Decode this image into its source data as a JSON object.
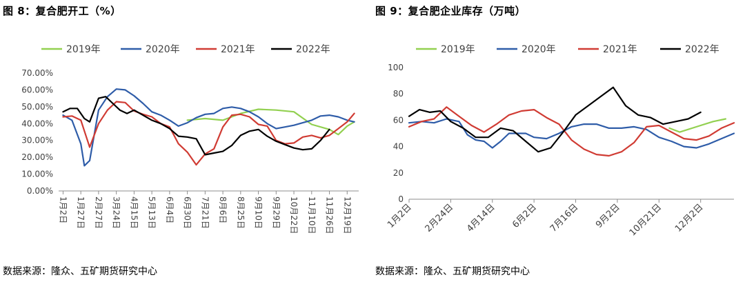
{
  "chart_data": [
    {
      "type": "line",
      "title": "图 8：复合肥开工（%）",
      "source": "数据来源：隆众、五矿期货研究中心",
      "ylim": [
        0,
        70
      ],
      "yticks": [
        "0.00%",
        "10.00%",
        "20.00%",
        "30.00%",
        "40.00%",
        "50.00%",
        "60.00%",
        "70.00%"
      ],
      "x_tick_labels": [
        "1月2日",
        "1月27日",
        "2月27日",
        "3月24日",
        "4月15日",
        "5月13日",
        "6月4日",
        "6月30日",
        "7月21日",
        "8月6日",
        "8月25日",
        "9月10日",
        "9月29日",
        "10月22日",
        "11月10日",
        "11月26日",
        "12月19日"
      ],
      "grid": false,
      "legend": "top",
      "series": [
        {
          "name": "2019年",
          "color": "#92d050",
          "x": [
            7.0,
            8.0,
            9.0,
            10.0,
            11.0,
            12.0,
            13.0,
            14.0,
            15.0,
            15.5,
            16.0,
            16.4
          ],
          "values": [
            42.0,
            43.0,
            42.0,
            46.0,
            48.5,
            48.0,
            47.0,
            39.5,
            36.5,
            33.5,
            38.5,
            41.0
          ]
        },
        {
          "name": "2020年",
          "color": "#2e5ca8",
          "x": [
            0.0,
            0.5,
            1.0,
            1.2,
            1.5,
            2.0,
            2.5,
            3.0,
            3.5,
            4.0,
            4.5,
            5.0,
            5.5,
            6.0,
            6.5,
            7.0,
            7.5,
            8.0,
            8.5,
            9.0,
            9.5,
            10.0,
            10.5,
            11.0,
            11.5,
            12.0,
            12.5,
            13.0,
            13.5,
            14.0,
            14.5,
            15.0,
            15.5,
            16.0,
            16.4
          ],
          "values": [
            45.0,
            42.0,
            28.0,
            15.0,
            18.0,
            48.0,
            56.0,
            60.5,
            60.0,
            56.5,
            52.0,
            47.0,
            45.0,
            42.0,
            38.5,
            40.5,
            43.5,
            45.5,
            46.0,
            49.0,
            49.8,
            49.0,
            47.0,
            44.0,
            40.0,
            37.0,
            38.0,
            39.0,
            40.5,
            42.0,
            44.5,
            45.0,
            44.0,
            42.0,
            41.0
          ]
        },
        {
          "name": "2021年",
          "color": "#d03b33",
          "x": [
            0.0,
            0.5,
            1.0,
            1.5,
            2.0,
            2.5,
            3.0,
            3.5,
            4.0,
            4.5,
            5.0,
            5.5,
            6.0,
            6.5,
            7.0,
            7.5,
            8.0,
            8.5,
            9.0,
            9.5,
            10.0,
            10.5,
            11.0,
            11.5,
            12.0,
            12.5,
            13.0,
            13.5,
            14.0,
            14.5,
            15.0,
            15.5,
            16.0,
            16.4
          ],
          "values": [
            44.0,
            44.5,
            42.0,
            26.0,
            40.0,
            48.0,
            53.0,
            52.5,
            47.5,
            45.5,
            44.0,
            40.0,
            38.0,
            28.0,
            23.0,
            15.5,
            22.0,
            25.0,
            38.0,
            45.0,
            45.5,
            44.0,
            39.5,
            38.5,
            30.0,
            28.0,
            28.5,
            32.0,
            33.0,
            31.5,
            33.0,
            37.0,
            41.0,
            46.0
          ]
        },
        {
          "name": "2022年",
          "color": "#000000",
          "x": [
            0.0,
            0.4,
            0.8,
            1.2,
            1.5,
            2.0,
            2.4,
            2.8,
            3.2,
            3.6,
            4.0,
            4.5,
            5.0,
            5.5,
            6.0,
            6.5,
            7.0,
            7.5,
            8.0,
            8.5,
            9.0,
            9.5,
            10.0,
            10.5,
            11.0,
            11.5,
            12.0,
            12.5,
            13.0,
            13.5,
            14.0,
            14.5,
            15.0
          ],
          "values": [
            47.0,
            49.0,
            49.0,
            43.0,
            41.0,
            55.0,
            56.0,
            52.0,
            48.0,
            46.0,
            48.0,
            45.0,
            42.0,
            40.0,
            37.0,
            32.5,
            32.0,
            31.0,
            21.5,
            22.5,
            23.5,
            27.0,
            33.0,
            35.5,
            36.5,
            32.5,
            29.5,
            27.5,
            25.5,
            24.5,
            25.0,
            30.0,
            36.5
          ]
        }
      ]
    },
    {
      "type": "line",
      "title": "图 9：复合肥企业库存（万吨）",
      "source": "数据来源：隆众、五矿期货研究中心",
      "ylim": [
        0,
        100
      ],
      "yticks": [
        "0",
        "20",
        "40",
        "60",
        "80",
        "100"
      ],
      "x_tick_labels": [
        "1月2日",
        "2月24日",
        "4月14日",
        "6月2日",
        "7月16日",
        "9月2日",
        "10月21日",
        "12月2日"
      ],
      "grid": false,
      "legend": "top",
      "series": [
        {
          "name": "2019年",
          "color": "#92d050",
          "x": [
            6.25,
            6.5,
            7.0,
            7.3,
            7.6
          ],
          "values": [
            54.0,
            51.0,
            56.0,
            59.0,
            61.0
          ]
        },
        {
          "name": "2020年",
          "color": "#2e5ca8",
          "x": [
            0.0,
            0.3,
            0.6,
            0.9,
            1.2,
            1.4,
            1.6,
            1.8,
            2.0,
            2.2,
            2.4,
            2.6,
            2.8,
            3.0,
            3.3,
            3.6,
            3.9,
            4.2,
            4.5,
            4.8,
            5.1,
            5.4,
            5.7,
            6.0,
            6.3,
            6.6,
            6.9,
            7.2,
            7.5,
            7.8
          ],
          "values": [
            58.0,
            59.0,
            58.0,
            61.0,
            59.0,
            49.0,
            45.0,
            44.0,
            39.0,
            44.0,
            50.0,
            50.0,
            50.0,
            47.0,
            46.0,
            50.0,
            55.0,
            57.0,
            57.0,
            54.0,
            54.0,
            55.0,
            53.0,
            47.0,
            44.0,
            40.0,
            39.0,
            42.0,
            46.0,
            50.0
          ]
        },
        {
          "name": "2021年",
          "color": "#d03b33",
          "x": [
            0.0,
            0.3,
            0.6,
            0.9,
            1.2,
            1.5,
            1.8,
            2.1,
            2.4,
            2.7,
            3.0,
            3.3,
            3.6,
            3.9,
            4.2,
            4.5,
            4.8,
            5.1,
            5.4,
            5.7,
            6.0,
            6.3,
            6.6,
            6.9,
            7.2,
            7.5,
            7.8
          ],
          "values": [
            55.0,
            59.0,
            61.0,
            70.0,
            63.0,
            56.0,
            51.0,
            57.0,
            64.0,
            67.0,
            68.0,
            62.0,
            57.0,
            45.0,
            38.0,
            34.0,
            33.0,
            36.0,
            43.0,
            55.0,
            56.0,
            51.0,
            46.0,
            45.0,
            48.0,
            54.0,
            58.0
          ]
        },
        {
          "name": "2022年",
          "color": "#000000",
          "x": [
            0.0,
            0.25,
            0.5,
            0.75,
            1.0,
            1.3,
            1.6,
            1.9,
            2.2,
            2.5,
            2.8,
            3.1,
            3.4,
            3.7,
            4.0,
            4.3,
            4.6,
            4.9,
            5.2,
            5.5,
            5.8,
            6.1,
            6.4,
            6.7,
            7.0
          ],
          "values": [
            63.0,
            68.0,
            66.0,
            67.0,
            59.0,
            54.0,
            47.0,
            47.0,
            54.0,
            52.0,
            44.0,
            36.0,
            39.0,
            51.0,
            64.0,
            71.0,
            78.0,
            85.0,
            71.0,
            64.0,
            62.0,
            57.0,
            59.0,
            61.0,
            66.0
          ]
        }
      ]
    }
  ]
}
